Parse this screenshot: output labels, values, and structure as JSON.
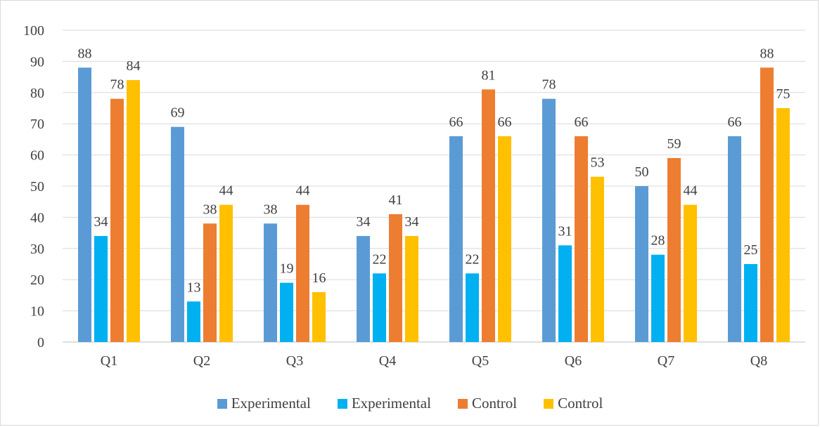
{
  "chart_data": {
    "type": "bar",
    "categories": [
      "Q1",
      "Q2",
      "Q3",
      "Q4",
      "Q5",
      "Q6",
      "Q7",
      "Q8"
    ],
    "series": [
      {
        "name": "Experimental",
        "color": "#5b9bd5",
        "values": [
          88,
          69,
          38,
          34,
          66,
          78,
          50,
          66
        ]
      },
      {
        "name": "Experimental",
        "color": "#00b0f0",
        "values": [
          34,
          13,
          19,
          22,
          22,
          31,
          28,
          25
        ]
      },
      {
        "name": "Control",
        "color": "#ed7d31",
        "values": [
          78,
          38,
          44,
          41,
          81,
          66,
          59,
          88
        ]
      },
      {
        "name": "Control",
        "color": "#ffc000",
        "values": [
          84,
          44,
          16,
          34,
          66,
          53,
          44,
          75
        ]
      }
    ],
    "ylim": [
      0,
      100
    ],
    "yticks": [
      "0",
      "10",
      "20",
      "30",
      "40",
      "50",
      "60",
      "70",
      "80",
      "90",
      "100"
    ],
    "grid": true,
    "legend_position": "bottom"
  }
}
